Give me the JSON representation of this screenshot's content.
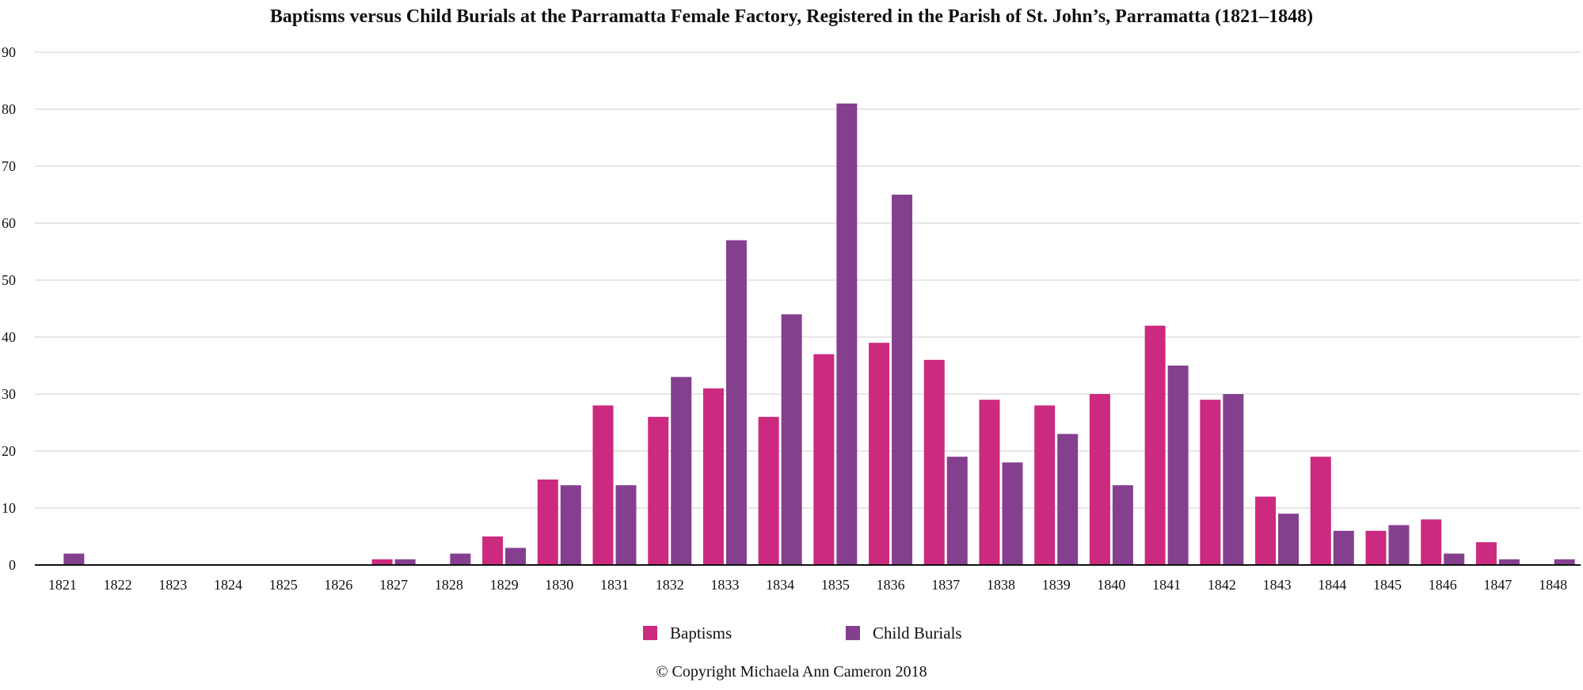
{
  "chart_data": {
    "type": "bar",
    "title": "Baptisms versus Child Burials at the Parramatta Female Factory, Registered in the Parish of St. John’s, Parramatta (1821–1848)",
    "xlabel": "",
    "ylabel": "",
    "ylim": [
      0,
      90
    ],
    "yticks": [
      0,
      10,
      20,
      30,
      40,
      50,
      60,
      70,
      80,
      90
    ],
    "grid": true,
    "legend_position": "bottom",
    "categories": [
      "1821",
      "1822",
      "1823",
      "1824",
      "1825",
      "1826",
      "1827",
      "1828",
      "1829",
      "1830",
      "1831",
      "1832",
      "1833",
      "1834",
      "1835",
      "1836",
      "1837",
      "1838",
      "1839",
      "1840",
      "1841",
      "1842",
      "1843",
      "1844",
      "1845",
      "1846",
      "1847",
      "1848"
    ],
    "series": [
      {
        "name": "Baptisms",
        "color": "#CC2A7E",
        "values": [
          0,
          0,
          0,
          0,
          0,
          0,
          1,
          0,
          5,
          15,
          28,
          26,
          31,
          26,
          37,
          39,
          36,
          29,
          28,
          30,
          42,
          29,
          12,
          19,
          6,
          8,
          4,
          0
        ]
      },
      {
        "name": "Child Burials",
        "color": "#84408F",
        "values": [
          2,
          0,
          0,
          0,
          0,
          0,
          1,
          2,
          3,
          14,
          14,
          33,
          57,
          44,
          81,
          65,
          19,
          18,
          23,
          14,
          35,
          30,
          9,
          6,
          7,
          2,
          1,
          1
        ]
      }
    ]
  },
  "footer": {
    "copyright": "© Copyright Michaela Ann Cameron 2018"
  }
}
